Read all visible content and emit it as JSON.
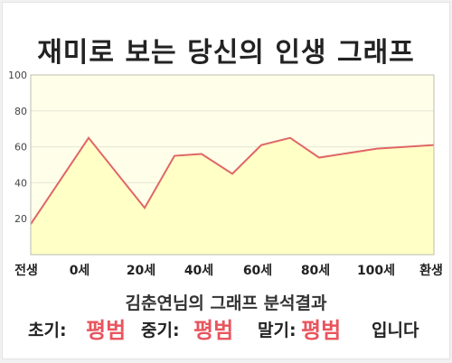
{
  "title": "재미로 보는 당신의 인생 그래프",
  "summary": "김춘연님의 그래프 분석결과",
  "results": {
    "early_label": "초기:",
    "early_value": "평범",
    "middle_label": "중기:",
    "middle_value": "평범",
    "late_label": "말기:",
    "late_value": "평범",
    "ending": "입니다"
  },
  "colors": {
    "line": "#e06666",
    "fill": "#ffffc6",
    "plot_bg": "#fefee9",
    "grid": "#e6e6d6",
    "result_value": "#e8555e"
  },
  "chart_data": {
    "type": "area",
    "title": "",
    "xlabel": "",
    "ylabel": "",
    "x_ticks": [
      "전생",
      "0세",
      "20세",
      "40세",
      "60세",
      "80세",
      "100세",
      "환생"
    ],
    "y_ticks": [
      20,
      40,
      60,
      80,
      100
    ],
    "ylim": [
      0,
      100
    ],
    "grid": true,
    "series": [
      {
        "x": [
          "전생",
          "0세",
          "20세",
          "30세",
          "40세",
          "50세",
          "60세",
          "70세",
          "80세",
          "100세",
          "환생"
        ],
        "values": [
          17,
          65,
          26,
          55,
          56,
          45,
          61,
          65,
          54,
          59,
          61
        ]
      }
    ]
  }
}
